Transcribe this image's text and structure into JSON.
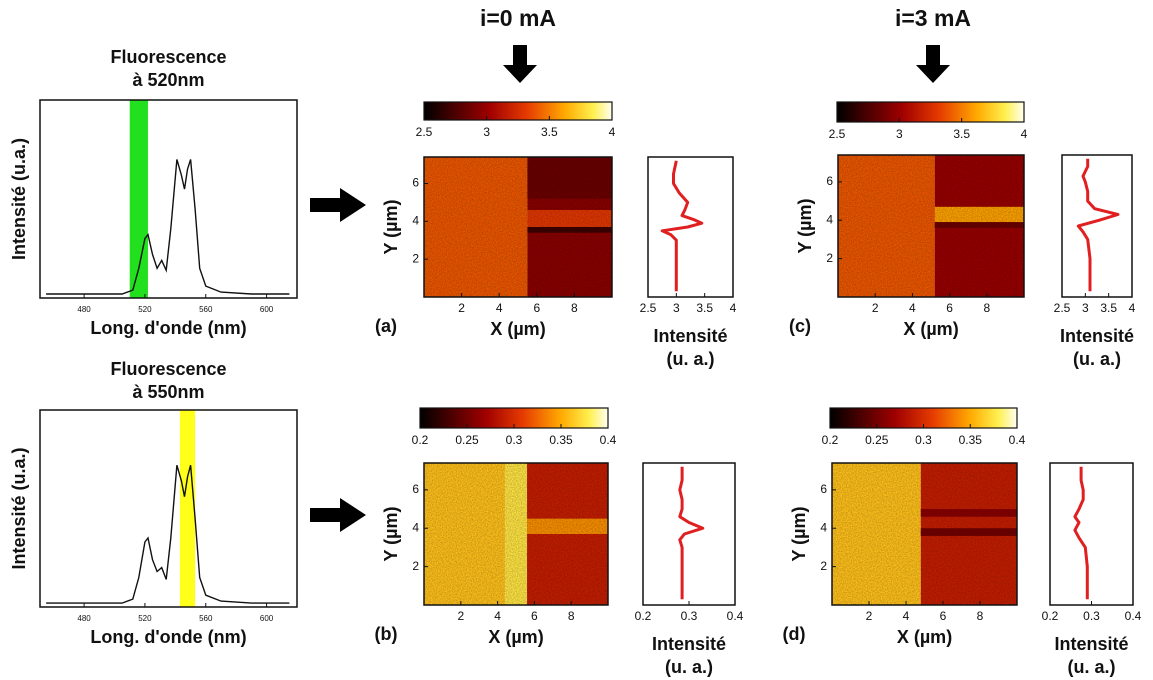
{
  "chart_data": [
    {
      "type": "spectrum",
      "title": [
        "Fluorescence",
        "à 520nm"
      ],
      "xlabel": "Long. d'onde (nm)",
      "ylabel": "Intensité (u.a.)",
      "xlim": [
        451,
        620
      ],
      "ylim": [
        0,
        1
      ],
      "xticks": [
        480,
        520,
        560,
        600
      ],
      "highlight": [
        510,
        522
      ],
      "highlight_color": "#22e01e",
      "color": "#111111",
      "x": [
        455,
        470,
        490,
        505,
        512,
        516,
        520,
        522,
        525,
        528,
        531,
        534,
        537,
        541,
        544,
        546,
        548,
        550,
        553,
        556,
        560,
        570,
        590,
        615
      ],
      "values": [
        0.02,
        0.02,
        0.02,
        0.02,
        0.04,
        0.15,
        0.3,
        0.32,
        0.22,
        0.15,
        0.19,
        0.14,
        0.35,
        0.7,
        0.62,
        0.55,
        0.65,
        0.7,
        0.45,
        0.15,
        0.06,
        0.03,
        0.02,
        0.02
      ]
    },
    {
      "type": "heatmap",
      "title": "i=0 mA",
      "panel": "(a)",
      "xlabel": "X (µm)",
      "ylabel": "Y (µm)",
      "xlim": [
        0,
        10
      ],
      "ylim": [
        0,
        7.4
      ],
      "xticks": [
        2,
        4,
        6,
        8
      ],
      "yticks": [
        2,
        4,
        6
      ],
      "colorbar": {
        "lim": [
          2.5,
          4
        ],
        "ticks": [
          2.5,
          3,
          3.5,
          4
        ]
      },
      "zones": [
        {
          "x": [
            0,
            5.5
          ],
          "y": [
            0,
            7.4
          ],
          "value": 3.4
        },
        {
          "x": [
            5.5,
            10
          ],
          "y": [
            0,
            7.4
          ],
          "value": 2.95
        },
        {
          "x": [
            5.5,
            10
          ],
          "y": [
            5.2,
            7.4
          ],
          "value": 2.85
        },
        {
          "x": [
            5.5,
            10
          ],
          "y": [
            3.7,
            4.6
          ],
          "value": 3.3
        },
        {
          "x": [
            5.5,
            10
          ],
          "y": [
            3.4,
            3.7
          ],
          "value": 2.7
        }
      ]
    },
    {
      "type": "profile",
      "xlabel": [
        "Intensité",
        "(u. a.)"
      ],
      "xlim": [
        2.5,
        4
      ],
      "ylim": [
        0,
        7.4
      ],
      "xticks": [
        2.5,
        3,
        3.5,
        4
      ],
      "color": "#e02020",
      "y": [
        0.3,
        1,
        2,
        3,
        3.3,
        3.5,
        3.7,
        3.9,
        4.1,
        4.3,
        4.6,
        5,
        5.5,
        6,
        6.5,
        7.2
      ],
      "values": [
        3.0,
        3.0,
        3.0,
        3.0,
        2.9,
        2.75,
        3.2,
        3.45,
        3.3,
        3.1,
        3.15,
        3.2,
        3.05,
        2.95,
        2.95,
        3.0
      ]
    },
    {
      "type": "heatmap",
      "title": "i=3 mA",
      "panel": "(c)",
      "xlabel": "X (µm)",
      "ylabel": "Y (µm)",
      "xlim": [
        0,
        10
      ],
      "ylim": [
        0,
        7.4
      ],
      "xticks": [
        2,
        4,
        6,
        8
      ],
      "yticks": [
        2,
        4,
        6
      ],
      "colorbar": {
        "lim": [
          2.5,
          4
        ],
        "ticks": [
          2.5,
          3,
          3.5,
          4
        ]
      },
      "zones": [
        {
          "x": [
            0,
            5.2
          ],
          "y": [
            0,
            7.4
          ],
          "value": 3.4
        },
        {
          "x": [
            5.2,
            10
          ],
          "y": [
            0,
            7.4
          ],
          "value": 3.0
        },
        {
          "x": [
            5.2,
            10
          ],
          "y": [
            3.9,
            4.7
          ],
          "value": 3.6
        },
        {
          "x": [
            5.2,
            10
          ],
          "y": [
            3.6,
            3.9
          ],
          "value": 2.85
        }
      ]
    },
    {
      "type": "profile",
      "xlabel": [
        "Intensité",
        "(u. a.)"
      ],
      "xlim": [
        2.5,
        4
      ],
      "ylim": [
        0,
        7.4
      ],
      "xticks": [
        2.5,
        3,
        3.5,
        4
      ],
      "color": "#e02020",
      "y": [
        0.3,
        1,
        2,
        3,
        3.4,
        3.7,
        4.0,
        4.3,
        4.6,
        5,
        5.5,
        6,
        6.3,
        6.8,
        7.2
      ],
      "values": [
        3.1,
        3.1,
        3.1,
        3.05,
        2.95,
        2.85,
        3.3,
        3.7,
        3.2,
        3.05,
        3.05,
        3.0,
        2.95,
        3.05,
        3.05
      ]
    },
    {
      "type": "spectrum",
      "title": [
        "Fluorescence",
        "à 550nm"
      ],
      "xlabel": "Long. d'onde (nm)",
      "ylabel": "Intensité (u.a.)",
      "xlim": [
        451,
        620
      ],
      "ylim": [
        0,
        1
      ],
      "xticks": [
        480,
        520,
        560,
        600
      ],
      "highlight": [
        543,
        553
      ],
      "highlight_color": "#ffff1a",
      "color": "#111111",
      "x": [
        455,
        470,
        490,
        505,
        512,
        516,
        520,
        522,
        525,
        528,
        531,
        534,
        537,
        541,
        544,
        546,
        548,
        550,
        553,
        556,
        560,
        570,
        590,
        615
      ],
      "values": [
        0.02,
        0.02,
        0.02,
        0.02,
        0.04,
        0.15,
        0.33,
        0.35,
        0.24,
        0.18,
        0.2,
        0.14,
        0.35,
        0.72,
        0.64,
        0.56,
        0.66,
        0.72,
        0.45,
        0.15,
        0.06,
        0.03,
        0.02,
        0.02
      ]
    },
    {
      "type": "heatmap",
      "panel": "(b)",
      "xlabel": "X (µm)",
      "ylabel": "Y (µm)",
      "xlim": [
        0,
        10
      ],
      "ylim": [
        0,
        7.4
      ],
      "xticks": [
        2,
        4,
        6,
        8
      ],
      "yticks": [
        2,
        4,
        6
      ],
      "colorbar": {
        "lim": [
          0.2,
          0.4
        ],
        "ticks": [
          0.2,
          0.25,
          0.3,
          0.35,
          0.4
        ]
      },
      "zones": [
        {
          "x": [
            0,
            4.4
          ],
          "y": [
            0,
            7.4
          ],
          "value": 0.36
        },
        {
          "x": [
            4.4,
            5.6
          ],
          "y": [
            0,
            7.4
          ],
          "value": 0.375
        },
        {
          "x": [
            5.6,
            10
          ],
          "y": [
            0,
            7.4
          ],
          "value": 0.29
        },
        {
          "x": [
            5.6,
            10
          ],
          "y": [
            3.7,
            4.5
          ],
          "value": 0.34
        }
      ]
    },
    {
      "type": "profile",
      "xlabel": [
        "Intensité",
        "(u. a.)"
      ],
      "xlim": [
        0.2,
        0.4
      ],
      "ylim": [
        0,
        7.4
      ],
      "xticks": [
        0.2,
        0.3,
        0.4
      ],
      "color": "#e02020",
      "y": [
        0.3,
        1,
        2,
        3,
        3.4,
        3.7,
        4.0,
        4.3,
        4.6,
        5,
        5.5,
        6,
        6.5,
        7.2
      ],
      "values": [
        0.285,
        0.285,
        0.285,
        0.285,
        0.28,
        0.29,
        0.33,
        0.3,
        0.28,
        0.285,
        0.285,
        0.28,
        0.285,
        0.285
      ]
    },
    {
      "type": "heatmap",
      "panel": "(d)",
      "xlabel": "X (µm)",
      "ylabel": "Y (µm)",
      "xlim": [
        0,
        10
      ],
      "ylim": [
        0,
        7.4
      ],
      "xticks": [
        2,
        4,
        6,
        8
      ],
      "yticks": [
        2,
        4,
        6
      ],
      "colorbar": {
        "lim": [
          0.2,
          0.4
        ],
        "ticks": [
          0.2,
          0.25,
          0.3,
          0.35,
          0.4
        ]
      },
      "zones": [
        {
          "x": [
            0,
            4.8
          ],
          "y": [
            0,
            7.4
          ],
          "value": 0.36
        },
        {
          "x": [
            4.8,
            10
          ],
          "y": [
            0,
            7.4
          ],
          "value": 0.29
        },
        {
          "x": [
            4.8,
            10
          ],
          "y": [
            3.6,
            4.0
          ],
          "value": 0.25
        },
        {
          "x": [
            4.8,
            10
          ],
          "y": [
            4.6,
            5.0
          ],
          "value": 0.26
        }
      ]
    },
    {
      "type": "profile",
      "xlabel": [
        "Intensité",
        "(u. a.)"
      ],
      "xlim": [
        0.2,
        0.4
      ],
      "ylim": [
        0,
        7.4
      ],
      "xticks": [
        0.2,
        0.3,
        0.4
      ],
      "color": "#e02020",
      "y": [
        0.3,
        1,
        2,
        3,
        3.5,
        3.9,
        4.3,
        4.6,
        5,
        5.5,
        6,
        6.5,
        7.2
      ],
      "values": [
        0.29,
        0.29,
        0.29,
        0.285,
        0.27,
        0.26,
        0.27,
        0.26,
        0.27,
        0.28,
        0.28,
        0.275,
        0.275
      ]
    }
  ]
}
